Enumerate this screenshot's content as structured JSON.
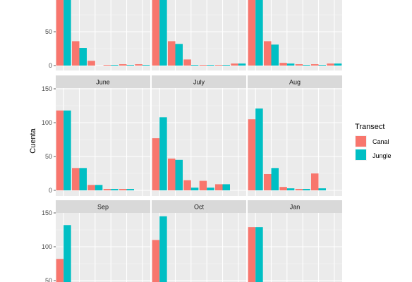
{
  "chart_data": {
    "type": "bar",
    "ylabel": "Cuenta",
    "ylim": [
      0,
      160
    ],
    "yticks": [
      0,
      50,
      100,
      150
    ],
    "bins": 6,
    "legend": {
      "title": "Transect",
      "placement": "right",
      "entries": [
        {
          "name": "Canal",
          "color": "#F8766D"
        },
        {
          "name": "Jungle",
          "color": "#00BFC4"
        }
      ]
    },
    "panels": [
      {
        "label": "",
        "canal": [
          102,
          36,
          7,
          1,
          2,
          2
        ],
        "jungle": [
          102,
          26,
          0,
          1,
          1,
          1
        ]
      },
      {
        "label": "",
        "canal": [
          102,
          36,
          9,
          1,
          1,
          3
        ],
        "jungle": [
          102,
          32,
          1,
          1,
          1,
          3
        ]
      },
      {
        "label": "",
        "canal": [
          102,
          36,
          4,
          2,
          2,
          3
        ],
        "jungle": [
          102,
          31,
          3,
          1,
          1,
          3
        ]
      },
      {
        "label": "June",
        "canal": [
          118,
          33,
          8,
          2,
          2,
          0
        ],
        "jungle": [
          118,
          33,
          8,
          2,
          2,
          0
        ]
      },
      {
        "label": "July",
        "canal": [
          77,
          47,
          15,
          14,
          9,
          0
        ],
        "jungle": [
          108,
          45,
          4,
          4,
          9,
          0
        ]
      },
      {
        "label": "Aug",
        "canal": [
          105,
          24,
          5,
          2,
          25,
          0
        ],
        "jungle": [
          121,
          33,
          3,
          2,
          3,
          0
        ]
      },
      {
        "label": "Sep",
        "canal": [
          82,
          0,
          0,
          0,
          0,
          0
        ],
        "jungle": [
          132,
          0,
          0,
          0,
          0,
          0
        ]
      },
      {
        "label": "Oct",
        "canal": [
          110,
          0,
          0,
          0,
          0,
          0
        ],
        "jungle": [
          145,
          0,
          0,
          0,
          0,
          0
        ]
      },
      {
        "label": "Jan",
        "canal": [
          129,
          0,
          0,
          0,
          0,
          0
        ],
        "jungle": [
          129,
          0,
          0,
          0,
          0,
          0
        ]
      }
    ]
  }
}
